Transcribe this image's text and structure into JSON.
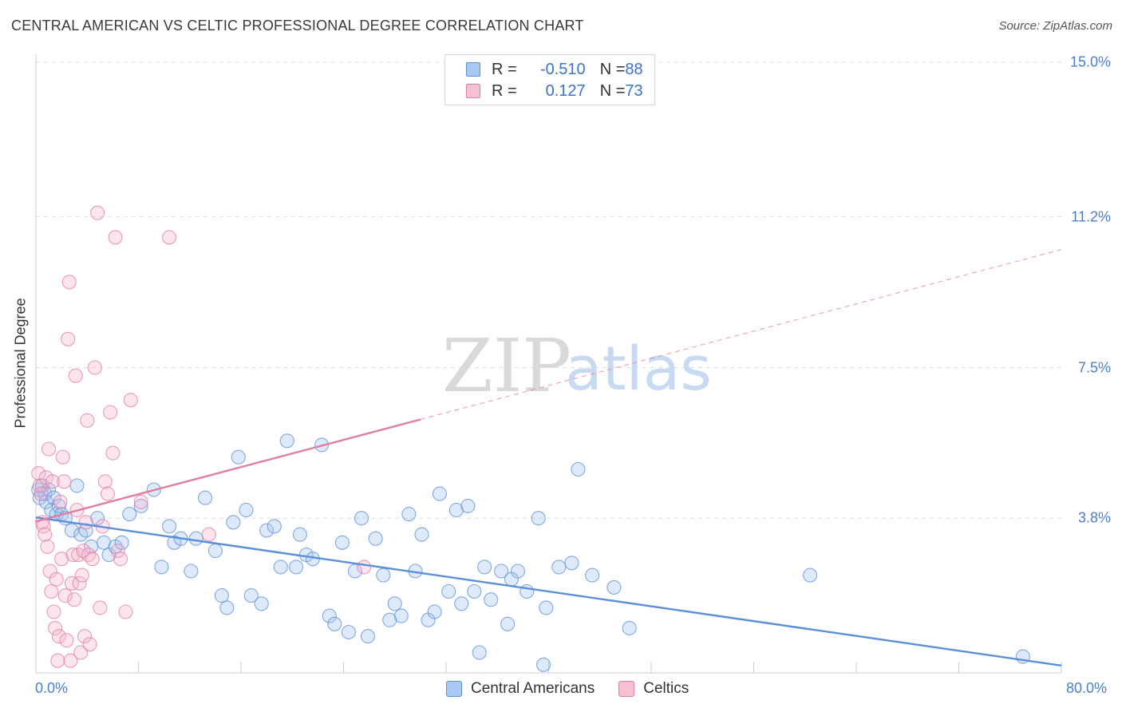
{
  "title": "CENTRAL AMERICAN VS CELTIC PROFESSIONAL DEGREE CORRELATION CHART",
  "source": "Source: ZipAtlas.com",
  "watermark": {
    "zip": "ZIP",
    "atlas": "atlas"
  },
  "legend": {
    "rows": [
      {
        "r_label": "R = ",
        "r_value": "-0.510",
        "n_label": "N = ",
        "n_value": "88",
        "color": "#a9c8f2",
        "border": "#5b8fd8"
      },
      {
        "r_label": "R = ",
        "r_value": "0.127",
        "n_label": "N = ",
        "n_value": "73",
        "color": "#f7bfd2",
        "border": "#e07ea0"
      }
    ]
  },
  "bottom_legend": [
    {
      "label": "Central Americans",
      "color": "#a9c8f2",
      "border": "#5b8fd8"
    },
    {
      "label": "Celtics",
      "color": "#f7bfd2",
      "border": "#e07ea0"
    }
  ],
  "chart_data": {
    "type": "scatter",
    "title": "CENTRAL AMERICAN VS CELTIC PROFESSIONAL DEGREE CORRELATION CHART",
    "xlabel": "",
    "ylabel": "Professional Degree",
    "xlim": [
      0,
      80
    ],
    "ylim": [
      0,
      15
    ],
    "x_tick_labels": [
      "0.0%",
      "80.0%"
    ],
    "y_ticks": [
      3.8,
      7.5,
      11.2,
      15.0
    ],
    "y_tick_labels": [
      "3.8%",
      "7.5%",
      "11.2%",
      "15.0%"
    ],
    "grid": true,
    "legend_position": "top-center",
    "series": [
      {
        "name": "Central Americans",
        "color": "#5b8fd8",
        "fill": "rgba(160,195,240,0.35)",
        "trend": {
          "x": [
            0,
            80
          ],
          "y": [
            3.82,
            0.18
          ],
          "dashed_until": null
        },
        "points": [
          [
            0.2,
            4.5
          ],
          [
            0.3,
            4.3
          ],
          [
            0.5,
            4.6
          ],
          [
            0.7,
            4.4
          ],
          [
            0.8,
            4.2
          ],
          [
            1.0,
            4.5
          ],
          [
            1.2,
            4.0
          ],
          [
            1.4,
            4.3
          ],
          [
            1.6,
            3.9
          ],
          [
            1.8,
            4.1
          ],
          [
            2.0,
            3.9
          ],
          [
            2.3,
            3.8
          ],
          [
            2.8,
            3.5
          ],
          [
            3.2,
            4.6
          ],
          [
            3.5,
            3.4
          ],
          [
            3.9,
            3.5
          ],
          [
            4.3,
            3.1
          ],
          [
            4.8,
            3.8
          ],
          [
            5.3,
            3.2
          ],
          [
            5.7,
            2.9
          ],
          [
            6.2,
            3.1
          ],
          [
            6.7,
            3.2
          ],
          [
            7.3,
            3.9
          ],
          [
            8.2,
            4.1
          ],
          [
            9.2,
            4.5
          ],
          [
            9.8,
            2.6
          ],
          [
            10.4,
            3.6
          ],
          [
            10.8,
            3.2
          ],
          [
            11.3,
            3.3
          ],
          [
            12.1,
            2.5
          ],
          [
            12.5,
            3.3
          ],
          [
            13.2,
            4.3
          ],
          [
            14.0,
            3.0
          ],
          [
            14.5,
            1.9
          ],
          [
            14.9,
            1.6
          ],
          [
            15.4,
            3.7
          ],
          [
            15.8,
            5.3
          ],
          [
            16.4,
            4.0
          ],
          [
            16.8,
            1.9
          ],
          [
            17.6,
            1.7
          ],
          [
            18.0,
            3.5
          ],
          [
            18.6,
            3.6
          ],
          [
            19.1,
            2.6
          ],
          [
            19.6,
            5.7
          ],
          [
            20.3,
            2.6
          ],
          [
            20.6,
            3.4
          ],
          [
            21.1,
            2.9
          ],
          [
            21.6,
            2.8
          ],
          [
            22.3,
            5.6
          ],
          [
            22.9,
            1.4
          ],
          [
            23.3,
            1.2
          ],
          [
            23.9,
            3.2
          ],
          [
            24.4,
            1.0
          ],
          [
            24.9,
            2.5
          ],
          [
            25.4,
            3.8
          ],
          [
            25.9,
            0.9
          ],
          [
            26.5,
            3.3
          ],
          [
            27.1,
            2.4
          ],
          [
            27.6,
            1.3
          ],
          [
            28.0,
            1.7
          ],
          [
            28.5,
            1.4
          ],
          [
            29.1,
            3.9
          ],
          [
            29.6,
            2.5
          ],
          [
            30.1,
            3.4
          ],
          [
            30.6,
            1.3
          ],
          [
            31.1,
            1.5
          ],
          [
            31.5,
            4.4
          ],
          [
            32.2,
            2.0
          ],
          [
            32.8,
            4.0
          ],
          [
            33.2,
            1.7
          ],
          [
            33.7,
            4.1
          ],
          [
            34.2,
            2.0
          ],
          [
            34.6,
            0.5
          ],
          [
            35.0,
            2.6
          ],
          [
            35.5,
            1.8
          ],
          [
            36.3,
            2.5
          ],
          [
            36.8,
            1.2
          ],
          [
            37.1,
            2.3
          ],
          [
            37.6,
            2.5
          ],
          [
            38.3,
            2.0
          ],
          [
            39.2,
            3.8
          ],
          [
            39.6,
            0.2
          ],
          [
            39.8,
            1.6
          ],
          [
            40.8,
            2.6
          ],
          [
            41.8,
            2.7
          ],
          [
            42.3,
            5.0
          ],
          [
            43.4,
            2.4
          ],
          [
            45.1,
            2.1
          ],
          [
            46.3,
            1.1
          ],
          [
            60.4,
            2.4
          ],
          [
            77.0,
            0.4
          ]
        ]
      },
      {
        "name": "Celtics",
        "color": "#e07ea0",
        "fill": "rgba(247,180,205,0.35)",
        "trend": {
          "x": [
            0,
            80
          ],
          "y": [
            3.72,
            10.4
          ],
          "dashed_from": 30
        },
        "points": [
          [
            0.2,
            4.9
          ],
          [
            0.3,
            4.6
          ],
          [
            0.4,
            4.4
          ],
          [
            0.5,
            3.7
          ],
          [
            0.6,
            3.6
          ],
          [
            0.7,
            3.4
          ],
          [
            0.8,
            4.8
          ],
          [
            0.9,
            3.1
          ],
          [
            1.0,
            5.5
          ],
          [
            1.1,
            2.5
          ],
          [
            1.2,
            2.0
          ],
          [
            1.3,
            4.7
          ],
          [
            1.4,
            1.5
          ],
          [
            1.5,
            1.1
          ],
          [
            1.6,
            2.3
          ],
          [
            1.7,
            0.3
          ],
          [
            1.8,
            0.9
          ],
          [
            1.9,
            4.2
          ],
          [
            2.0,
            2.8
          ],
          [
            2.1,
            5.3
          ],
          [
            2.2,
            4.7
          ],
          [
            2.3,
            1.9
          ],
          [
            2.4,
            0.8
          ],
          [
            2.5,
            8.2
          ],
          [
            2.6,
            9.6
          ],
          [
            2.7,
            0.3
          ],
          [
            2.8,
            2.2
          ],
          [
            2.9,
            2.9
          ],
          [
            3.0,
            1.8
          ],
          [
            3.1,
            7.3
          ],
          [
            3.2,
            4.0
          ],
          [
            3.3,
            2.9
          ],
          [
            3.4,
            2.2
          ],
          [
            3.5,
            0.5
          ],
          [
            3.6,
            2.4
          ],
          [
            3.7,
            3.0
          ],
          [
            3.8,
            0.9
          ],
          [
            3.9,
            3.7
          ],
          [
            4.0,
            6.2
          ],
          [
            4.1,
            2.9
          ],
          [
            4.2,
            0.7
          ],
          [
            4.4,
            2.8
          ],
          [
            4.6,
            7.5
          ],
          [
            4.8,
            11.3
          ],
          [
            5.0,
            1.6
          ],
          [
            5.2,
            3.6
          ],
          [
            5.4,
            4.7
          ],
          [
            5.6,
            4.4
          ],
          [
            5.8,
            6.4
          ],
          [
            6.0,
            5.4
          ],
          [
            6.2,
            10.7
          ],
          [
            6.4,
            3.0
          ],
          [
            6.6,
            2.8
          ],
          [
            7.0,
            1.5
          ],
          [
            7.4,
            6.7
          ],
          [
            8.2,
            4.2
          ],
          [
            10.4,
            10.7
          ],
          [
            13.5,
            3.4
          ],
          [
            25.6,
            2.6
          ]
        ]
      }
    ]
  }
}
